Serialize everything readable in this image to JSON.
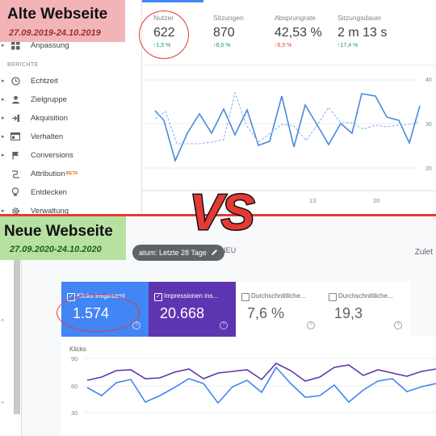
{
  "old": {
    "title": "Alte Webseite",
    "dates": "27.09.2019-24.10.2019",
    "sidebar": {
      "section_label": "BERICHTE",
      "items": [
        {
          "label": "Anpassung",
          "icon": "dashboard-icon"
        },
        {
          "label": "Echtzeit",
          "icon": "clock-icon"
        },
        {
          "label": "Zielgruppe",
          "icon": "person-icon"
        },
        {
          "label": "Akquisition",
          "icon": "acquisition-icon"
        },
        {
          "label": "Verhalten",
          "icon": "behavior-icon"
        },
        {
          "label": "Conversions",
          "icon": "flag-icon"
        },
        {
          "label": "Attribution",
          "icon": "attribution-icon",
          "badge": "BETA"
        },
        {
          "label": "Entdecken",
          "icon": "lightbulb-icon"
        },
        {
          "label": "Verwaltung",
          "icon": "gear-icon"
        }
      ]
    },
    "metrics": [
      {
        "label": "Nutzer",
        "value": "622",
        "change": "1,5 %",
        "direction": "up"
      },
      {
        "label": "Sitzungen",
        "value": "870",
        "change": "6,0 %",
        "direction": "up"
      },
      {
        "label": "Absprungrate",
        "value": "42,53 %",
        "change": "6,5 %",
        "direction": "up"
      },
      {
        "label": "Sitzungsdauer",
        "value": "2 m 13 s",
        "change": "17,4 %",
        "direction": "up"
      }
    ],
    "chart": {
      "x_ticks": [
        "13",
        "20"
      ],
      "y_ticks": [
        "40",
        "30",
        "20"
      ]
    }
  },
  "vs_label": "VS",
  "new": {
    "title": "Neue Webseite",
    "dates": "27.09.2020-24.10.2020",
    "toolbar": {
      "date_filter": "atum: Letzte 28 Tage",
      "new_label": "NEU",
      "compare_label": "Zulet"
    },
    "cards": [
      {
        "label": "Klicks insgesamt",
        "value": "1.574",
        "checked": true
      },
      {
        "label": "Impressionen ins...",
        "value": "20.668",
        "checked": true
      },
      {
        "label": "Durchschnittliche...",
        "value": "7,6 %",
        "checked": false
      },
      {
        "label": "Durchschnittliche...",
        "value": "19,3",
        "checked": false
      }
    ],
    "chart": {
      "title": "Klicks",
      "y_ticks": [
        "90",
        "60",
        "30"
      ]
    }
  },
  "colors": {
    "old_title_bg": "#f3b4b7",
    "new_title_bg": "#b7e1a1",
    "clicks": "#4285f4",
    "impressions": "#5e35b1",
    "highlight_ring": "#e53935",
    "vs_fill": "#e53935"
  }
}
